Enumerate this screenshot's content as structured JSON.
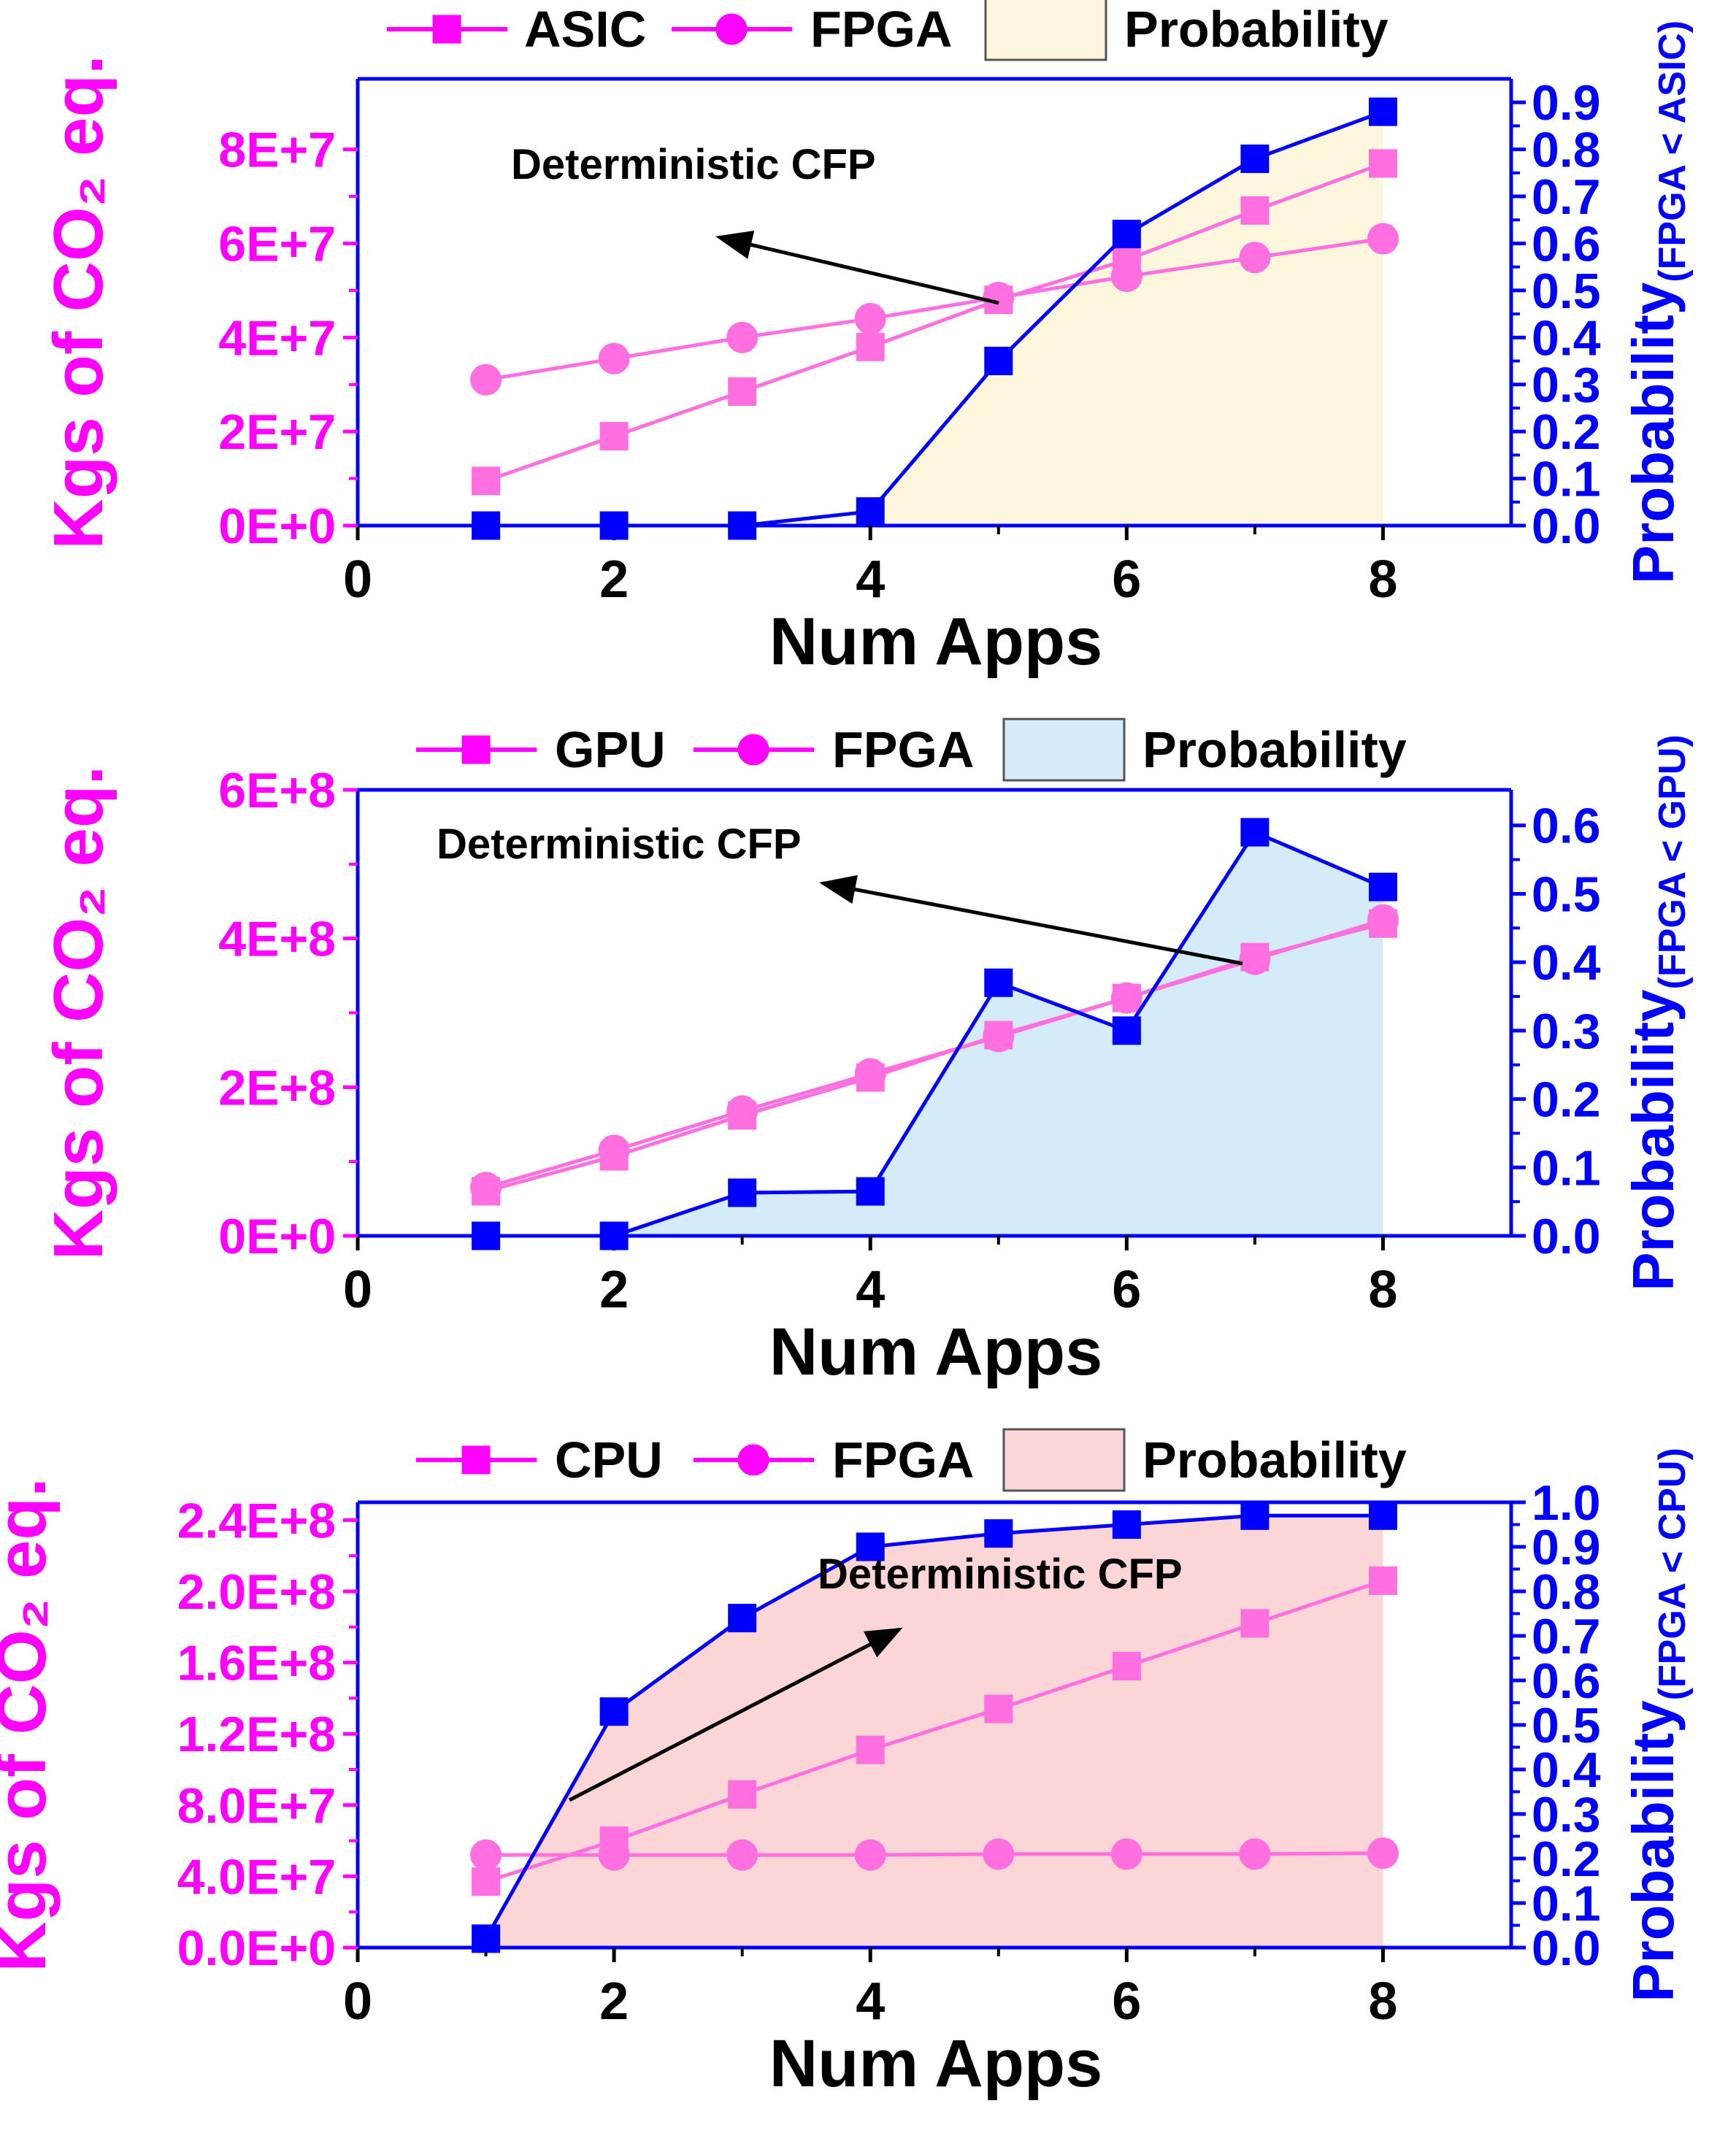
{
  "colors": {
    "magenta": "#ff00ff",
    "magenta_light": "#ff6fe0",
    "blue": "#0000ff",
    "black": "#000000",
    "fill_asic": "#fbf6dc",
    "fill_gpu": "#d4ecfa",
    "fill_cpu": "#fcd6d6"
  },
  "chart_data": [
    {
      "id": "asic",
      "type": "line",
      "xlabel": "Num Apps",
      "ylabel": "Kgs of CO₂ eq.",
      "ylabel2": "Probability",
      "ylabel2_sub": "(FPGA < ASIC)",
      "annotation": "Deterministic CFP",
      "x": [
        1,
        2,
        3,
        4,
        5,
        6,
        7,
        8
      ],
      "xlim": [
        0,
        9
      ],
      "xticks": [
        "0",
        "2",
        "4",
        "6",
        "8"
      ],
      "ylim": [
        0,
        95000000
      ],
      "yticks": [
        "0E+0",
        "2E+7",
        "4E+7",
        "6E+7",
        "8E+7"
      ],
      "ytick_values": [
        0,
        20000000,
        40000000,
        60000000,
        80000000
      ],
      "y2lim": [
        0,
        0.95
      ],
      "y2ticks": [
        "0.0",
        "0.1",
        "0.2",
        "0.3",
        "0.4",
        "0.5",
        "0.6",
        "0.7",
        "0.8",
        "0.9"
      ],
      "y2tick_values": [
        0,
        0.1,
        0.2,
        0.3,
        0.4,
        0.5,
        0.6,
        0.7,
        0.8,
        0.9
      ],
      "legend": [
        "ASIC",
        "FPGA",
        "Probability"
      ],
      "series": [
        {
          "name": "ASIC",
          "axis": "left",
          "marker": "square",
          "values": [
            9500000,
            19000000,
            28500000,
            38000000,
            48000000,
            56500000,
            67000000,
            77000000
          ]
        },
        {
          "name": "FPGA",
          "axis": "left",
          "marker": "circle",
          "values": [
            31000000,
            35500000,
            40000000,
            44000000,
            48500000,
            53000000,
            57000000,
            61000000
          ]
        },
        {
          "name": "Probability",
          "axis": "right",
          "marker": "square",
          "values": [
            0.0,
            0.0,
            0.0,
            0.03,
            0.35,
            0.62,
            0.78,
            0.88
          ]
        }
      ]
    },
    {
      "id": "gpu",
      "type": "line",
      "xlabel": "Num Apps",
      "ylabel": "Kgs of CO₂ eq.",
      "ylabel2": "Probability",
      "ylabel2_sub": "(FPGA < GPU)",
      "annotation": "Deterministic CFP",
      "x": [
        1,
        2,
        3,
        4,
        5,
        6,
        7,
        8
      ],
      "xlim": [
        0,
        9
      ],
      "xticks": [
        "0",
        "2",
        "4",
        "6",
        "8"
      ],
      "ylim": [
        0,
        600000000
      ],
      "yticks": [
        "0E+0",
        "2E+8",
        "4E+8",
        "6E+8"
      ],
      "ytick_values": [
        0,
        200000000,
        400000000,
        600000000
      ],
      "y2lim": [
        0,
        0.652
      ],
      "y2ticks": [
        "0.0",
        "0.1",
        "0.2",
        "0.3",
        "0.4",
        "0.5",
        "0.6"
      ],
      "y2tick_values": [
        0,
        0.1,
        0.2,
        0.3,
        0.4,
        0.5,
        0.6
      ],
      "legend": [
        "GPU",
        "FPGA",
        "Probability"
      ],
      "series": [
        {
          "name": "GPU",
          "axis": "left",
          "marker": "square",
          "values": [
            60000000,
            107000000,
            162000000,
            213000000,
            270000000,
            320000000,
            375000000,
            420000000
          ]
        },
        {
          "name": "FPGA",
          "axis": "left",
          "marker": "circle",
          "values": [
            65000000,
            115000000,
            168000000,
            218000000,
            268000000,
            320000000,
            372000000,
            425000000
          ]
        },
        {
          "name": "Probability",
          "axis": "right",
          "marker": "square",
          "values": [
            0.0,
            0.0,
            0.063,
            0.065,
            0.37,
            0.3,
            0.59,
            0.51
          ]
        }
      ]
    },
    {
      "id": "cpu",
      "type": "line",
      "xlabel": "Num Apps",
      "ylabel": "Kgs of CO₂ eq.",
      "ylabel2": "Probability",
      "ylabel2_sub": "(FPGA < CPU)",
      "annotation": "Deterministic CFP",
      "x": [
        1,
        2,
        3,
        4,
        5,
        6,
        7,
        8
      ],
      "xlim": [
        0,
        9
      ],
      "xticks": [
        "0",
        "2",
        "4",
        "6",
        "8"
      ],
      "ylim": [
        0,
        250000000
      ],
      "yticks": [
        "0.0E+0",
        "4.0E+7",
        "8.0E+7",
        "1.2E+8",
        "1.6E+8",
        "2.0E+8",
        "2.4E+8"
      ],
      "ytick_values": [
        0,
        40000000,
        80000000,
        120000000,
        160000000,
        200000000,
        240000000
      ],
      "y2lim": [
        0,
        1.0
      ],
      "y2ticks": [
        "0.0",
        "0.1",
        "0.2",
        "0.3",
        "0.4",
        "0.5",
        "0.6",
        "0.7",
        "0.8",
        "0.9",
        "1.0"
      ],
      "y2tick_values": [
        0,
        0.1,
        0.2,
        0.3,
        0.4,
        0.5,
        0.6,
        0.7,
        0.8,
        0.9,
        1.0
      ],
      "legend": [
        "CPU",
        "FPGA",
        "Probability"
      ],
      "series": [
        {
          "name": "CPU",
          "axis": "left",
          "marker": "square",
          "values": [
            37000000,
            60000000,
            86000000,
            111000000,
            134000000,
            158000000,
            182000000,
            206000000
          ]
        },
        {
          "name": "FPGA",
          "axis": "left",
          "marker": "circle",
          "values": [
            52000000,
            52000000,
            52000000,
            52000000,
            52500000,
            52500000,
            52500000,
            53000000
          ]
        },
        {
          "name": "Probability",
          "axis": "right",
          "marker": "square",
          "values": [
            0.02,
            0.53,
            0.74,
            0.9,
            0.93,
            0.95,
            0.97,
            0.97
          ]
        }
      ]
    }
  ]
}
